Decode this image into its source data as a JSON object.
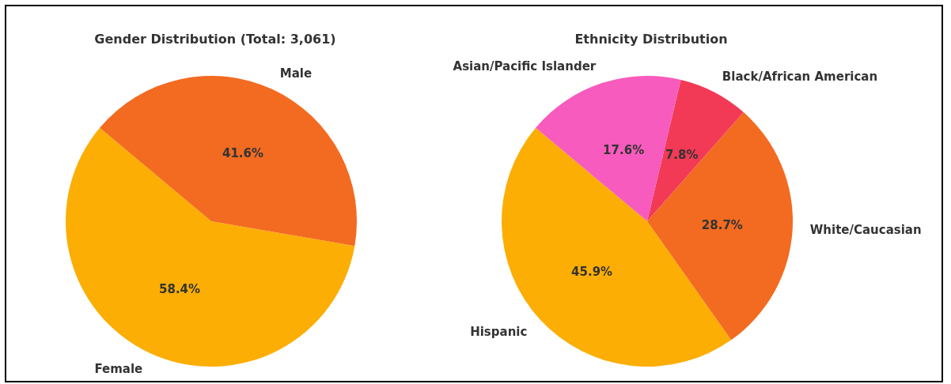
{
  "chart_data": [
    {
      "type": "pie",
      "title": "Gender Distribution (Total: 3,061)",
      "categories": [
        "Female",
        "Male"
      ],
      "values": [
        58.4,
        41.6
      ],
      "colors": [
        "#fcae05",
        "#f26b21"
      ],
      "value_labels": [
        "58.4%",
        "41.6%"
      ]
    },
    {
      "type": "pie",
      "title": "Ethnicity Distribution",
      "categories": [
        "Hispanic",
        "White/Caucasian",
        "Black/African American",
        "Asian/Pacific Islander"
      ],
      "values": [
        45.9,
        28.7,
        7.8,
        17.6
      ],
      "colors": [
        "#fcae05",
        "#f26b21",
        "#f23a56",
        "#f75bbd"
      ],
      "value_labels": [
        "45.9%",
        "28.7%",
        "7.8%",
        "17.6%"
      ]
    }
  ]
}
